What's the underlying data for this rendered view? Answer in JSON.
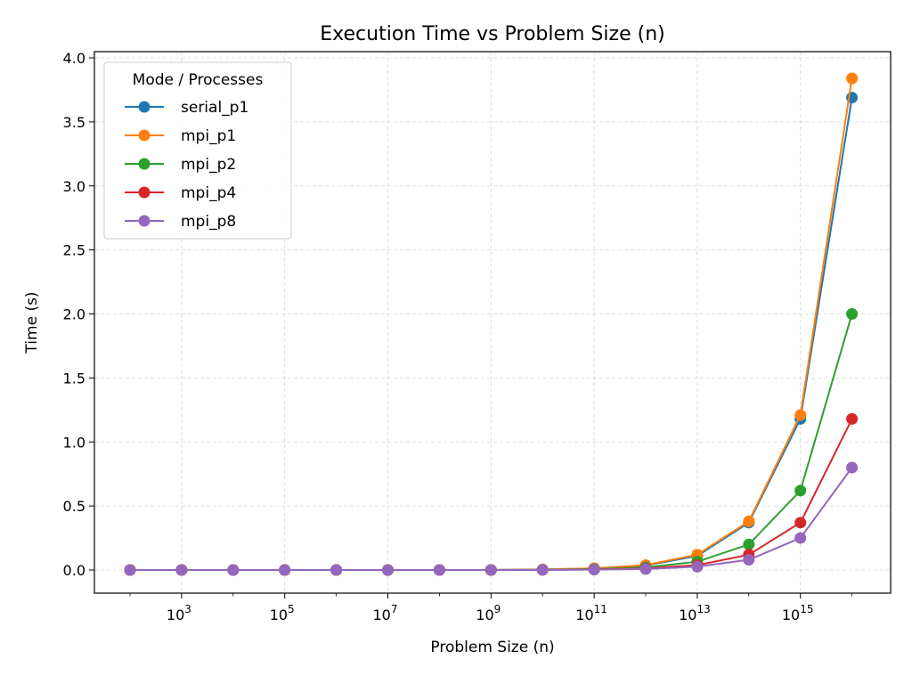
{
  "chart_data": {
    "type": "line",
    "title": "Execution Time vs Problem Size (n)",
    "xlabel": "Problem Size (n)",
    "ylabel": "Time (s)",
    "x_scale": "log",
    "x": [
      100,
      1000,
      10000,
      100000,
      1000000,
      10000000,
      100000000,
      1000000000,
      10000000000,
      100000000000,
      1000000000000,
      10000000000000,
      100000000000000,
      1000000000000000,
      10000000000000000
    ],
    "xticks": [
      {
        "base": "10",
        "exp": "3",
        "value": 1000
      },
      {
        "base": "10",
        "exp": "5",
        "value": 100000
      },
      {
        "base": "10",
        "exp": "7",
        "value": 10000000
      },
      {
        "base": "10",
        "exp": "9",
        "value": 1000000000
      },
      {
        "base": "10",
        "exp": "11",
        "value": 100000000000
      },
      {
        "base": "10",
        "exp": "13",
        "value": 10000000000000
      },
      {
        "base": "10",
        "exp": "15",
        "value": 1000000000000000
      }
    ],
    "yticks": [
      "0.0",
      "0.5",
      "1.0",
      "1.5",
      "2.0",
      "2.5",
      "3.0",
      "3.5",
      "4.0"
    ],
    "ylim": [
      -0.18,
      4.04
    ],
    "grid": true,
    "legend": {
      "title": "Mode / Processes",
      "position": "top-left"
    },
    "series": [
      {
        "name": "serial_p1",
        "color": "#1f77b4",
        "values": [
          0,
          0,
          0,
          0,
          0,
          0,
          0,
          0,
          0.004,
          0.012,
          0.035,
          0.11,
          0.37,
          1.18,
          3.69
        ]
      },
      {
        "name": "mpi_p1",
        "color": "#ff7f0e",
        "values": [
          0,
          0,
          0,
          0,
          0,
          0,
          0,
          0,
          0.004,
          0.013,
          0.038,
          0.12,
          0.38,
          1.21,
          3.84
        ]
      },
      {
        "name": "mpi_p2",
        "color": "#2ca02c",
        "values": [
          0,
          0,
          0,
          0,
          0,
          0,
          0,
          0,
          0.002,
          0.007,
          0.02,
          0.065,
          0.2,
          0.62,
          2.0
        ]
      },
      {
        "name": "mpi_p4",
        "color": "#d62728",
        "values": [
          0,
          0,
          0,
          0,
          0,
          0,
          0,
          0,
          0.001,
          0.004,
          0.012,
          0.038,
          0.12,
          0.37,
          1.18
        ]
      },
      {
        "name": "mpi_p8",
        "color": "#9467bd",
        "values": [
          0,
          0,
          0,
          0,
          0,
          0,
          0,
          0,
          0.001,
          0.003,
          0.008,
          0.026,
          0.08,
          0.25,
          0.8
        ]
      }
    ]
  }
}
